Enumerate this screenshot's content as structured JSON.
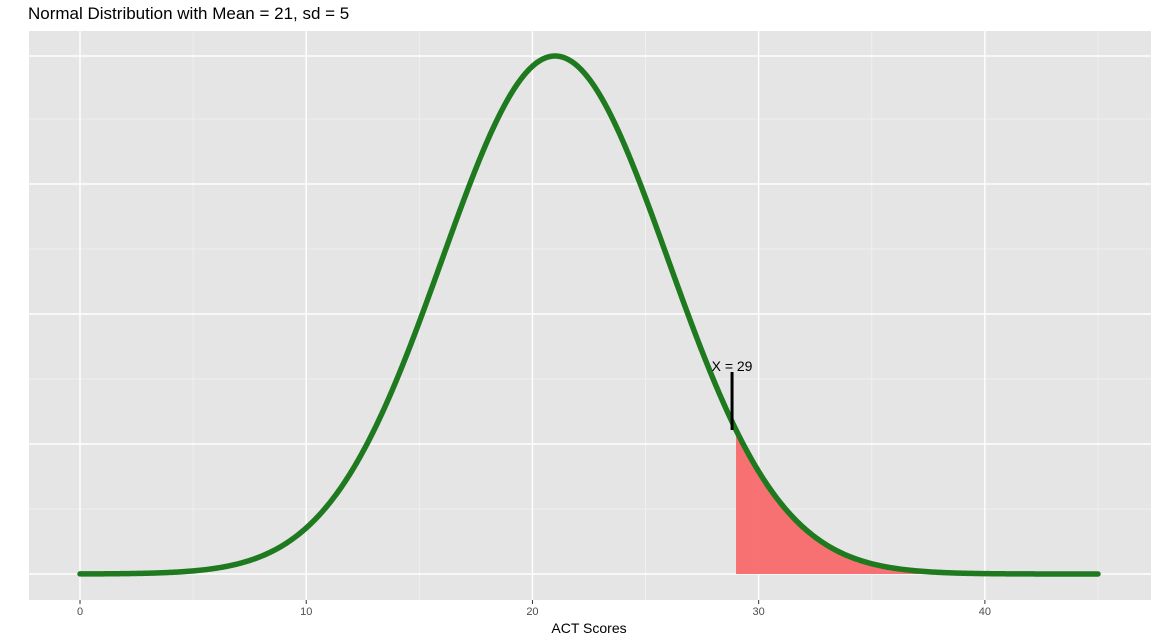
{
  "chart_data": {
    "type": "area",
    "title": "Normal Distribution with Mean = 21, sd = 5",
    "xlabel": "ACT Scores",
    "ylabel": "",
    "distribution": {
      "name": "normal",
      "mean": 21,
      "sd": 5
    },
    "xlim": [
      0,
      45
    ],
    "x_ticks": [
      0,
      10,
      20,
      30,
      40
    ],
    "shaded_region": {
      "from": 29,
      "to": 45,
      "color": "#f8696b"
    },
    "annotation": {
      "x": 29,
      "label": "X = 29"
    },
    "curve_color": "#1f7a1f",
    "grid": true,
    "panel_background": "#e5e5e5"
  }
}
